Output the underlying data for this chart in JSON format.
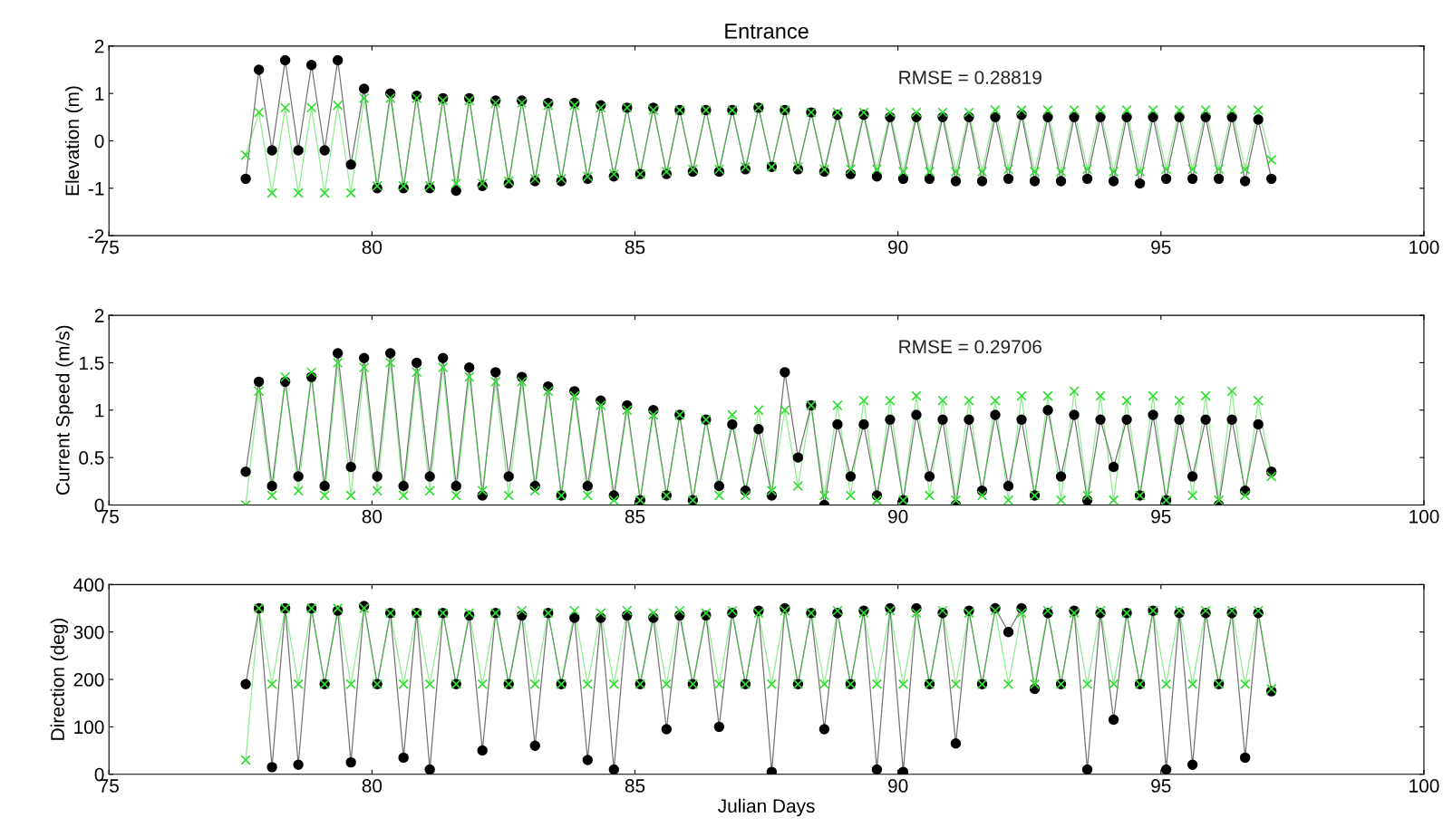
{
  "chart_data": [
    {
      "type": "line",
      "title": "Entrance",
      "ylabel": "Elevation (m)",
      "annotations": [
        "RMSE = 0.28819"
      ],
      "x": [
        77.6,
        77.85,
        78.1,
        78.35,
        78.6,
        78.85,
        79.1,
        79.35,
        79.6,
        79.85,
        80.1,
        80.35,
        80.6,
        80.85,
        81.1,
        81.35,
        81.6,
        81.85,
        82.1,
        82.35,
        82.6,
        82.85,
        83.1,
        83.35,
        83.6,
        83.85,
        84.1,
        84.35,
        84.6,
        84.85,
        85.1,
        85.35,
        85.6,
        85.85,
        86.1,
        86.35,
        86.6,
        86.85,
        87.1,
        87.35,
        87.6,
        87.85,
        88.1,
        88.35,
        88.6,
        88.85,
        89.1,
        89.35,
        89.6,
        89.85,
        90.1,
        90.35,
        90.6,
        90.85,
        91.1,
        91.35,
        91.6,
        91.85,
        92.1,
        92.35,
        92.6,
        92.85,
        93.1,
        93.35,
        93.6,
        93.85,
        94.1,
        94.35,
        94.6,
        94.85,
        95.1,
        95.35,
        95.6,
        95.85,
        96.1,
        96.35,
        96.6,
        96.85,
        97.1
      ],
      "xlim": [
        75,
        100
      ],
      "xticks": [
        75,
        80,
        85,
        90,
        95,
        100
      ],
      "ylim": [
        -2,
        2
      ],
      "yticks": [
        -2,
        -1,
        0,
        1,
        2
      ],
      "series": [
        {
          "color": "#33dd33",
          "marker": "cross",
          "values": [
            -0.3,
            0.6,
            -1.1,
            0.7,
            -1.1,
            0.7,
            -1.1,
            0.75,
            -1.1,
            0.9,
            -0.95,
            0.9,
            -0.95,
            0.9,
            -0.95,
            0.85,
            -0.9,
            0.85,
            -0.9,
            0.8,
            -0.85,
            0.8,
            -0.8,
            0.75,
            -0.8,
            0.75,
            -0.75,
            0.7,
            -0.7,
            0.7,
            -0.7,
            0.65,
            -0.65,
            0.65,
            -0.6,
            0.65,
            -0.6,
            0.65,
            -0.55,
            0.7,
            -0.55,
            0.65,
            -0.55,
            0.6,
            -0.6,
            0.6,
            -0.6,
            0.6,
            -0.6,
            0.6,
            -0.65,
            0.6,
            -0.65,
            0.6,
            -0.65,
            0.6,
            -0.65,
            0.65,
            -0.6,
            0.65,
            -0.65,
            0.65,
            -0.65,
            0.65,
            -0.6,
            0.65,
            -0.65,
            0.65,
            -0.65,
            0.65,
            -0.6,
            0.65,
            -0.6,
            0.65,
            -0.6,
            0.65,
            -0.6,
            0.65,
            -0.4
          ]
        },
        {
          "color": "#000000",
          "marker": "circle",
          "values": [
            -0.8,
            1.5,
            -0.2,
            1.7,
            -0.2,
            1.6,
            -0.2,
            1.7,
            -0.5,
            1.1,
            -1.0,
            1.0,
            -1.0,
            0.95,
            -1.0,
            0.9,
            -1.05,
            0.9,
            -0.95,
            0.85,
            -0.9,
            0.85,
            -0.85,
            0.8,
            -0.85,
            0.8,
            -0.8,
            0.75,
            -0.75,
            0.7,
            -0.7,
            0.7,
            -0.7,
            0.65,
            -0.65,
            0.65,
            -0.65,
            0.65,
            -0.6,
            0.7,
            -0.55,
            0.65,
            -0.6,
            0.6,
            -0.65,
            0.55,
            -0.7,
            0.55,
            -0.75,
            0.5,
            -0.8,
            0.5,
            -0.8,
            0.5,
            -0.85,
            0.5,
            -0.85,
            0.5,
            -0.8,
            0.55,
            -0.85,
            0.5,
            -0.85,
            0.5,
            -0.8,
            0.5,
            -0.85,
            0.5,
            -0.9,
            0.5,
            -0.8,
            0.5,
            -0.8,
            0.5,
            -0.8,
            0.5,
            -0.85,
            0.45,
            -0.8
          ]
        }
      ]
    },
    {
      "type": "line",
      "ylabel": "Current Speed (m/s)",
      "annotations": [
        "RMSE = 0.29706"
      ],
      "x": [
        77.6,
        77.85,
        78.1,
        78.35,
        78.6,
        78.85,
        79.1,
        79.35,
        79.6,
        79.85,
        80.1,
        80.35,
        80.6,
        80.85,
        81.1,
        81.35,
        81.6,
        81.85,
        82.1,
        82.35,
        82.6,
        82.85,
        83.1,
        83.35,
        83.6,
        83.85,
        84.1,
        84.35,
        84.6,
        84.85,
        85.1,
        85.35,
        85.6,
        85.85,
        86.1,
        86.35,
        86.6,
        86.85,
        87.1,
        87.35,
        87.6,
        87.85,
        88.1,
        88.35,
        88.6,
        88.85,
        89.1,
        89.35,
        89.6,
        89.85,
        90.1,
        90.35,
        90.6,
        90.85,
        91.1,
        91.35,
        91.6,
        91.85,
        92.1,
        92.35,
        92.6,
        92.85,
        93.1,
        93.35,
        93.6,
        93.85,
        94.1,
        94.35,
        94.6,
        94.85,
        95.1,
        95.35,
        95.6,
        95.85,
        96.1,
        96.35,
        96.6,
        96.85,
        97.1
      ],
      "xlim": [
        75,
        100
      ],
      "xticks": [
        75,
        80,
        85,
        90,
        95,
        100
      ],
      "ylim": [
        0,
        2
      ],
      "yticks": [
        0,
        0.5,
        1,
        1.5,
        2
      ],
      "series": [
        {
          "color": "#33dd33",
          "marker": "cross",
          "values": [
            0.0,
            1.2,
            0.1,
            1.35,
            0.15,
            1.4,
            0.1,
            1.5,
            0.1,
            1.45,
            0.15,
            1.5,
            0.1,
            1.4,
            0.15,
            1.45,
            0.1,
            1.35,
            0.15,
            1.3,
            0.1,
            1.3,
            0.15,
            1.2,
            0.1,
            1.15,
            0.1,
            1.05,
            0.05,
            1.0,
            0.05,
            0.95,
            0.1,
            0.95,
            0.05,
            0.9,
            0.1,
            0.95,
            0.1,
            1.0,
            0.15,
            1.0,
            0.2,
            1.05,
            0.1,
            1.05,
            0.1,
            1.1,
            0.05,
            1.1,
            0.05,
            1.15,
            0.1,
            1.1,
            0.05,
            1.1,
            0.1,
            1.1,
            0.05,
            1.15,
            0.1,
            1.15,
            0.05,
            1.2,
            0.1,
            1.15,
            0.05,
            1.1,
            0.1,
            1.15,
            0.05,
            1.1,
            0.1,
            1.15,
            0.05,
            1.2,
            0.1,
            1.1,
            0.3
          ]
        },
        {
          "color": "#000000",
          "marker": "circle",
          "values": [
            0.35,
            1.3,
            0.2,
            1.3,
            0.3,
            1.35,
            0.2,
            1.6,
            0.4,
            1.55,
            0.3,
            1.6,
            0.2,
            1.5,
            0.3,
            1.55,
            0.2,
            1.45,
            0.1,
            1.4,
            0.3,
            1.35,
            0.2,
            1.25,
            0.1,
            1.2,
            0.2,
            1.1,
            0.1,
            1.05,
            0.05,
            1.0,
            0.1,
            0.95,
            0.05,
            0.9,
            0.2,
            0.85,
            0.15,
            0.8,
            0.1,
            1.4,
            0.5,
            1.05,
            0.0,
            0.85,
            0.3,
            0.85,
            0.1,
            0.9,
            0.05,
            0.95,
            0.3,
            0.9,
            0.0,
            0.9,
            0.15,
            0.95,
            0.2,
            0.9,
            0.1,
            1.0,
            0.3,
            0.95,
            0.05,
            0.9,
            0.4,
            0.9,
            0.1,
            0.95,
            0.05,
            0.9,
            0.3,
            0.9,
            0.0,
            0.9,
            0.15,
            0.85,
            0.35
          ]
        }
      ]
    },
    {
      "type": "line",
      "ylabel": "Direction (deg)",
      "xlabel": "Julian Days",
      "x": [
        77.6,
        77.85,
        78.1,
        78.35,
        78.6,
        78.85,
        79.1,
        79.35,
        79.6,
        79.85,
        80.1,
        80.35,
        80.6,
        80.85,
        81.1,
        81.35,
        81.6,
        81.85,
        82.1,
        82.35,
        82.6,
        82.85,
        83.1,
        83.35,
        83.6,
        83.85,
        84.1,
        84.35,
        84.6,
        84.85,
        85.1,
        85.35,
        85.6,
        85.85,
        86.1,
        86.35,
        86.6,
        86.85,
        87.1,
        87.35,
        87.6,
        87.85,
        88.1,
        88.35,
        88.6,
        88.85,
        89.1,
        89.35,
        89.6,
        89.85,
        90.1,
        90.35,
        90.6,
        90.85,
        91.1,
        91.35,
        91.6,
        91.85,
        92.1,
        92.35,
        92.6,
        92.85,
        93.1,
        93.35,
        93.6,
        93.85,
        94.1,
        94.35,
        94.6,
        94.85,
        95.1,
        95.35,
        95.6,
        95.85,
        96.1,
        96.35,
        96.6,
        96.85,
        97.1
      ],
      "xlim": [
        75,
        100
      ],
      "xticks": [
        75,
        80,
        85,
        90,
        95,
        100
      ],
      "ylim": [
        0,
        400
      ],
      "yticks": [
        0,
        100,
        200,
        300,
        400
      ],
      "series": [
        {
          "color": "#33dd33",
          "marker": "cross",
          "values": [
            30,
            350,
            190,
            350,
            190,
            350,
            190,
            350,
            190,
            350,
            190,
            340,
            190,
            340,
            190,
            340,
            190,
            340,
            190,
            340,
            190,
            345,
            190,
            340,
            190,
            345,
            190,
            340,
            190,
            345,
            190,
            340,
            190,
            345,
            190,
            340,
            190,
            345,
            190,
            340,
            190,
            345,
            190,
            340,
            190,
            345,
            190,
            340,
            190,
            345,
            190,
            340,
            190,
            345,
            190,
            340,
            190,
            345,
            190,
            340,
            190,
            345,
            190,
            340,
            190,
            345,
            190,
            340,
            190,
            345,
            190,
            345,
            190,
            345,
            190,
            345,
            190,
            345,
            180
          ]
        },
        {
          "color": "#000000",
          "marker": "circle",
          "values": [
            190,
            350,
            15,
            350,
            20,
            350,
            190,
            345,
            25,
            355,
            190,
            340,
            35,
            340,
            10,
            340,
            190,
            335,
            50,
            340,
            190,
            335,
            60,
            340,
            190,
            330,
            30,
            330,
            10,
            335,
            190,
            330,
            95,
            335,
            190,
            335,
            100,
            340,
            190,
            345,
            5,
            350,
            190,
            340,
            95,
            340,
            190,
            345,
            10,
            350,
            5,
            350,
            190,
            340,
            65,
            345,
            190,
            350,
            300,
            350,
            180,
            340,
            190,
            345,
            10,
            340,
            115,
            340,
            190,
            345,
            10,
            340,
            20,
            340,
            190,
            340,
            35,
            340,
            175
          ]
        }
      ]
    }
  ]
}
